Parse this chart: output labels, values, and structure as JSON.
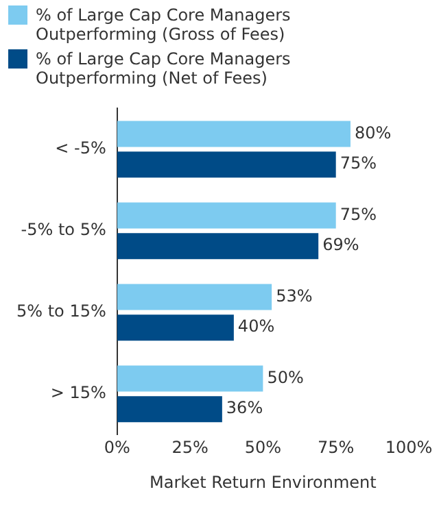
{
  "chart_data": {
    "type": "bar",
    "orientation": "horizontal",
    "xlabel": "Market Return Environment",
    "categories": [
      "< -5%",
      "-5% to 5%",
      "5% to 15%",
      "> 15%"
    ],
    "series": [
      {
        "name": "% of Large Cap Core Managers Outperforming (Gross of Fees)",
        "color": "#7dcbf0",
        "values": [
          80,
          75,
          53,
          50
        ],
        "value_labels": [
          "80%",
          "75%",
          "53%",
          "50%"
        ]
      },
      {
        "name": "% of Large Cap Core Managers Outperforming (Net of Fees)",
        "color": "#004b87",
        "values": [
          75,
          69,
          40,
          36
        ],
        "value_labels": [
          "75%",
          "69%",
          "40%",
          "36%"
        ]
      }
    ],
    "xlim": [
      0,
      100
    ],
    "xticks": [
      {
        "value": 0,
        "label": "0%"
      },
      {
        "value": 25,
        "label": "25%"
      },
      {
        "value": 50,
        "label": "50%"
      },
      {
        "value": 75,
        "label": "75%"
      },
      {
        "value": 100,
        "label": "100%"
      }
    ],
    "grid": false,
    "legend": "top left"
  }
}
